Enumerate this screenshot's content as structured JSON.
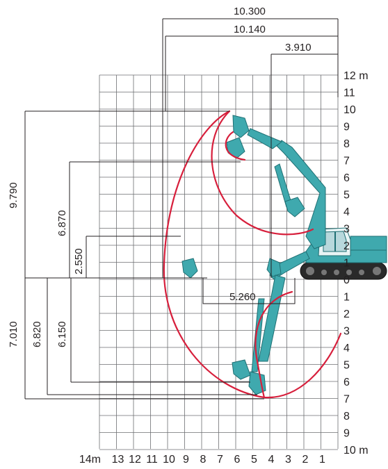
{
  "diagram": {
    "x_axis": {
      "ticks": [
        "14m",
        "13",
        "12",
        "11",
        "10",
        "9",
        "8",
        "7",
        "6",
        "5",
        "4",
        "3",
        "2",
        "1"
      ]
    },
    "y_axis": {
      "ticks_top": [
        "12 m",
        "11",
        "10",
        "9",
        "8",
        "7",
        "6",
        "5",
        "4",
        "3",
        "2",
        "1",
        "0"
      ],
      "ticks_bottom": [
        "1",
        "2",
        "3",
        "4",
        "5",
        "6",
        "7",
        "8",
        "9",
        "10 m"
      ]
    },
    "dimensions": {
      "max_reach_ground": "10.300",
      "max_reach": "10.140",
      "min_swing_radius": "3.910",
      "max_digging_height": "9.790",
      "max_dump_height": "6.870",
      "min_dump_height": "2.550",
      "max_digging_depth": "7.010",
      "max_depth_2440_level": "6.820",
      "max_vertical_wall_depth": "6.150",
      "level_cut_length": "5.260"
    },
    "colors": {
      "envelope": "#d71f3c",
      "machine": "#3fa9ae",
      "grid": "#6d6e71",
      "text": "#231f20"
    }
  }
}
